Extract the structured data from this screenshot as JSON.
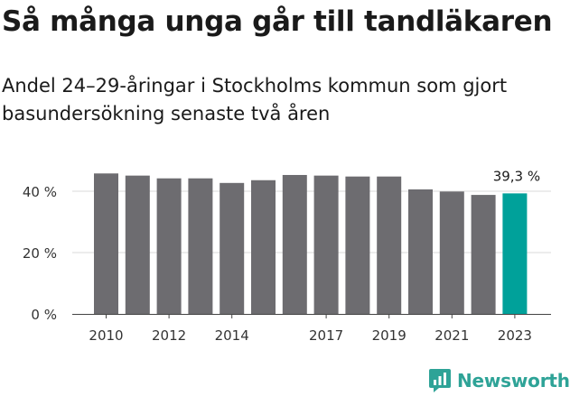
{
  "title": "Så många unga går till tandläkaren",
  "subtitle": "Andel 24–29-åringar i Stockholms kommun som gjort basundersökning senaste två åren",
  "brand": {
    "name": "Newsworthy",
    "icon": "newsworthy-chart-logo-icon",
    "color": "#2ea397"
  },
  "chart_data": {
    "type": "bar",
    "categories": [
      "2010",
      "2011",
      "2012",
      "2013",
      "2014",
      "2015",
      "2016",
      "2017",
      "2018",
      "2019",
      "2020",
      "2021",
      "2022",
      "2023"
    ],
    "values": [
      45.8,
      45.1,
      44.2,
      44.2,
      42.7,
      43.6,
      45.3,
      45.1,
      44.8,
      44.8,
      40.6,
      39.9,
      38.8,
      39.3
    ],
    "tick_labels_x": [
      "2010",
      "2012",
      "2014",
      "2017",
      "2019",
      "2021",
      "2023"
    ],
    "tick_labels_y": [
      "0 %",
      "20 %",
      "40 %"
    ],
    "y_ticks": [
      0,
      20,
      40
    ],
    "ylim": [
      0,
      50
    ],
    "highlight": {
      "index": 13,
      "label": "39,3 %",
      "color": "#00a19a"
    },
    "bar_color": "#6d6c70",
    "grid": true,
    "xlabel": "",
    "ylabel": ""
  }
}
